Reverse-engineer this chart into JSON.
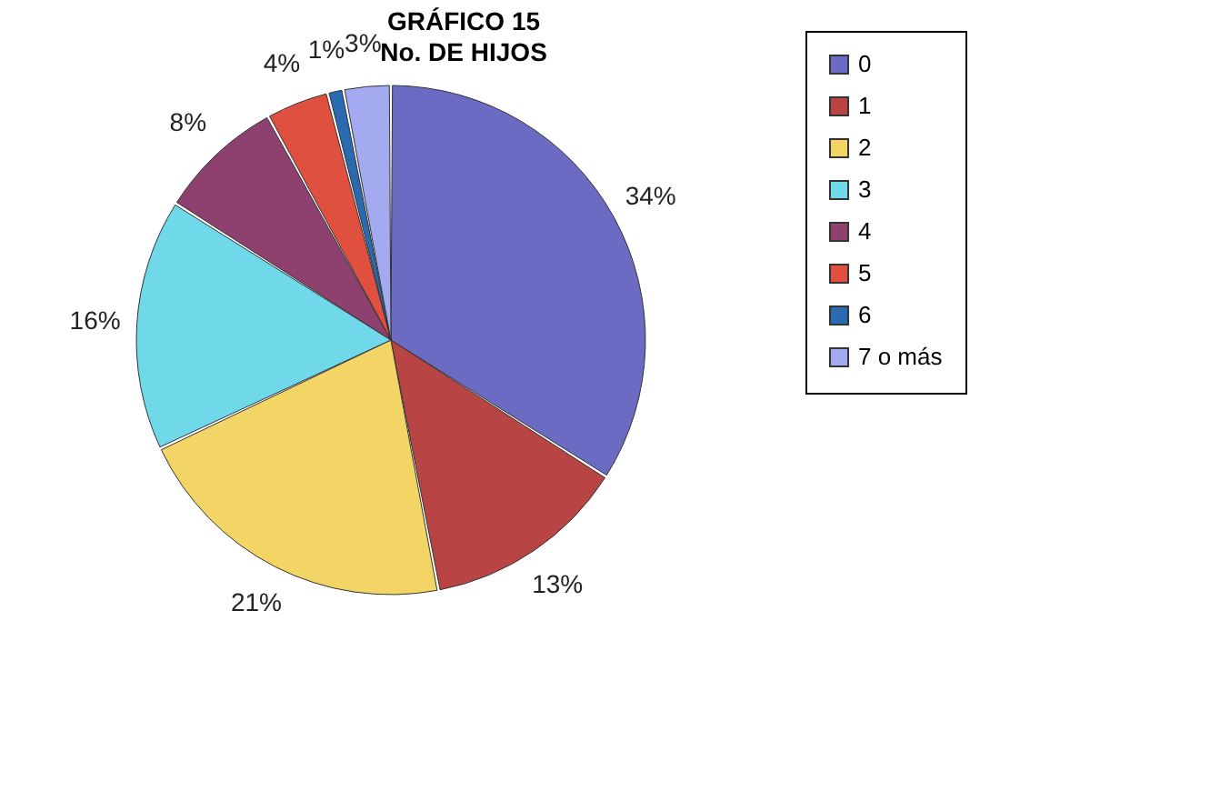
{
  "chart_data": {
    "type": "pie",
    "title": "GRÁFICO 15",
    "subtitle": "No. DE HIJOS",
    "categories": [
      "0",
      "1",
      "2",
      "3",
      "4",
      "5",
      "6",
      "7 o más"
    ],
    "values": [
      34,
      13,
      21,
      16,
      8,
      4,
      1,
      3
    ],
    "colors": [
      "#6b6bc4",
      "#b84444",
      "#f2d565",
      "#6fd9ea",
      "#8e406f",
      "#e0503f",
      "#2a6ab0",
      "#a3aaf0"
    ],
    "value_labels": [
      "34%",
      "13%",
      "21%",
      "16%",
      "8%",
      "4%",
      "1%",
      "3%"
    ],
    "legend": "right"
  }
}
